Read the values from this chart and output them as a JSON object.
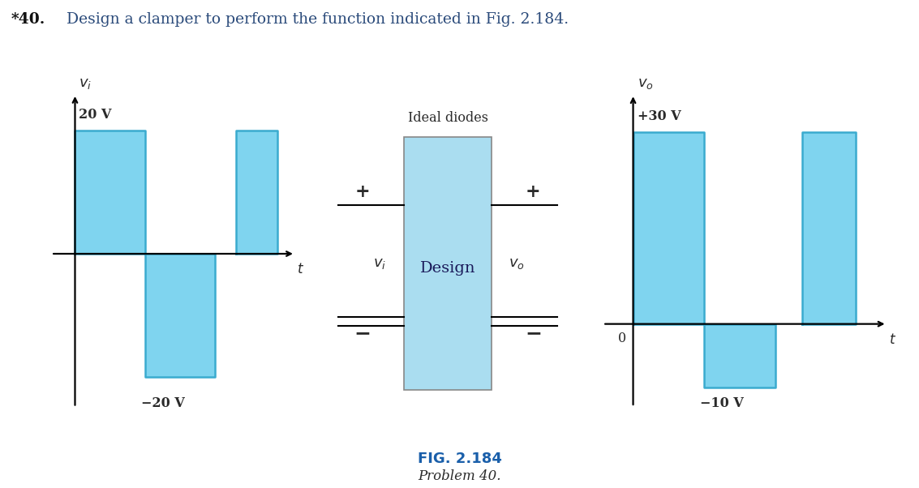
{
  "title_star": "*40.",
  "title_rest": "  Design a clamper to perform the function indicated in Fig. 2.184.",
  "fig_label": "FIG. 2.184",
  "fig_caption": "Problem 40.",
  "background_color": "#ffffff",
  "signal_color": "#7fd4ef",
  "signal_edge_color": "#3aabcf",
  "text_color": "#2a2a2a",
  "title_color": "#2a4a7a",
  "blue_text_color": "#1a5faa",
  "vi_fill_segments": [
    {
      "x": [
        0.3,
        1.3,
        1.3,
        0.3
      ],
      "y": [
        0,
        0,
        20,
        20
      ]
    },
    {
      "x": [
        1.3,
        2.3,
        2.3,
        1.3
      ],
      "y": [
        0,
        0,
        -20,
        -20
      ]
    },
    {
      "x": [
        2.6,
        3.2,
        3.2,
        2.6
      ],
      "y": [
        0,
        0,
        20,
        20
      ]
    }
  ],
  "vo_fill_segments": [
    {
      "x": [
        0.3,
        1.1,
        1.1,
        0.3
      ],
      "y": [
        0,
        0,
        30,
        30
      ]
    },
    {
      "x": [
        1.1,
        1.9,
        1.9,
        1.1
      ],
      "y": [
        0,
        0,
        -10,
        -10
      ]
    },
    {
      "x": [
        2.2,
        2.8,
        2.8,
        2.2
      ],
      "y": [
        0,
        0,
        30,
        30
      ]
    }
  ],
  "box_fill_color": "#aaddf0",
  "box_edge_color": "#888888",
  "design_label_color": "#1a1a5a"
}
